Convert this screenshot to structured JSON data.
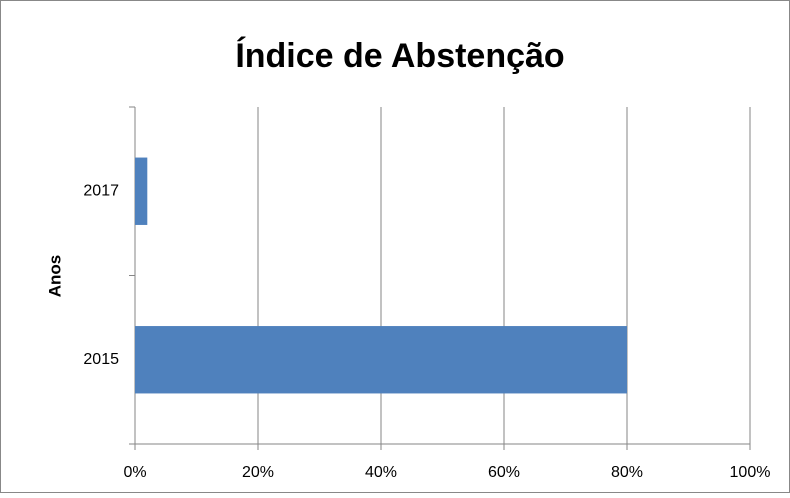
{
  "chart_data": {
    "type": "hbar",
    "title": "Índice de Abstenção",
    "y_label": "Anos",
    "categories": [
      "2015",
      "2017"
    ],
    "values": [
      80,
      2
    ],
    "color": "#4f81bd",
    "xlim": [
      0,
      100
    ],
    "xticks": [
      {
        "value": 0,
        "label": "0%"
      },
      {
        "value": 20,
        "label": "20%"
      },
      {
        "value": 40,
        "label": "40%"
      },
      {
        "value": 60,
        "label": "60%"
      },
      {
        "value": 80,
        "label": "80%"
      },
      {
        "value": 100,
        "label": "100%"
      }
    ],
    "grid": true
  }
}
